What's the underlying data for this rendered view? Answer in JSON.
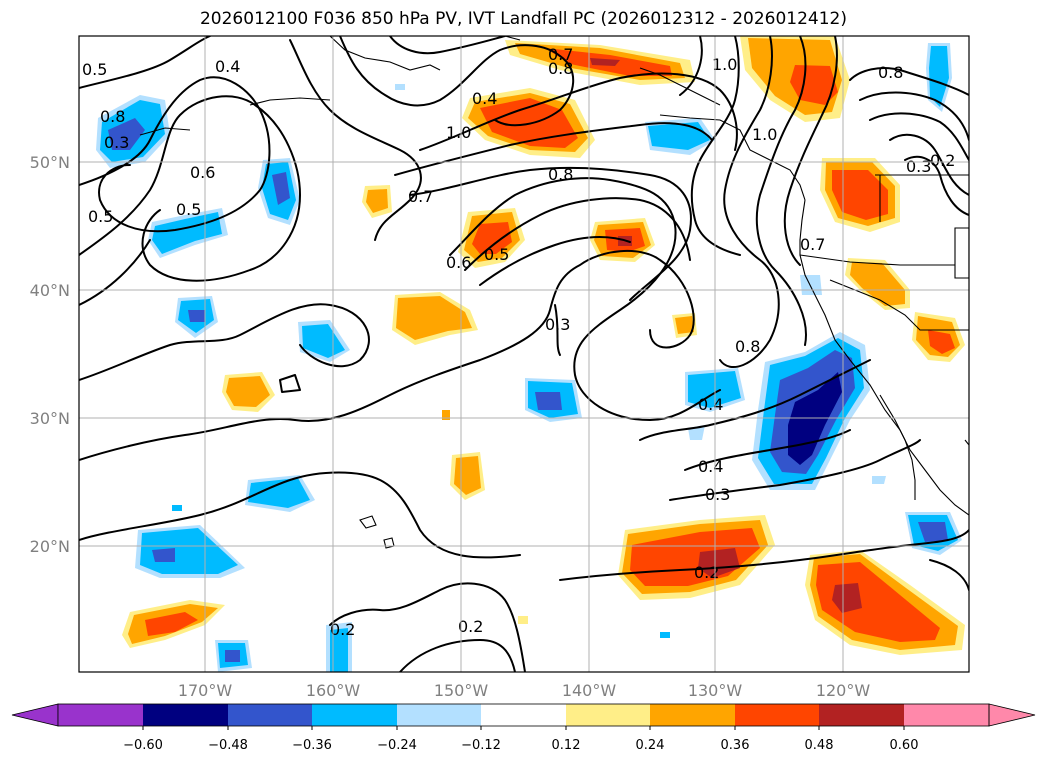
{
  "title": "2026012100 F036 850 hPa PV, IVT Landfall PC (2026012312 - 2026012412)",
  "lat_labels": [
    "50°N",
    "40°N",
    "30°N",
    "20°N"
  ],
  "lon_labels": [
    "170°W",
    "160°W",
    "150°W",
    "140°W",
    "130°W",
    "120°W"
  ],
  "colorbar": {
    "colors": [
      "#9933cc",
      "#000080",
      "#3355cc",
      "#00bbff",
      "#b3e0ff",
      "#ffffff",
      "#ffee88",
      "#ffa500",
      "#ff4500",
      "#b22222",
      "#ff88aa"
    ],
    "tick_labels": [
      "−0.60",
      "−0.48",
      "−0.36",
      "−0.24",
      "−0.12",
      "0.12",
      "0.24",
      "0.36",
      "0.48",
      "0.60"
    ]
  },
  "contour_labels": [
    "0.5",
    "0.4",
    "0.3",
    "0.6",
    "0.5",
    "0.5",
    "0.4",
    "1.0",
    "0.7",
    "0.8",
    "1.0",
    "0.8",
    "0.7",
    "0.6",
    "0.5",
    "0.8",
    "1.0",
    "0.8",
    "0.7",
    "0.3",
    "0.2",
    "0.3",
    "0.8",
    "0.4",
    "0.4",
    "0.3",
    "0.2",
    "0.2",
    "0.2"
  ]
}
